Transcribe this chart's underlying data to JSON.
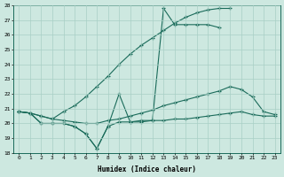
{
  "xlabel": "Humidex (Indice chaleur)",
  "ylabel": "",
  "bg_color": "#cde8e0",
  "grid_color": "#a8cfc5",
  "line_color": "#1a6b5a",
  "xlim": [
    -0.5,
    23.5
  ],
  "ylim": [
    18,
    28
  ],
  "yticks": [
    18,
    19,
    20,
    21,
    22,
    23,
    24,
    25,
    26,
    27,
    28
  ],
  "xticks": [
    0,
    1,
    2,
    3,
    4,
    5,
    6,
    7,
    8,
    9,
    10,
    11,
    12,
    13,
    14,
    15,
    16,
    17,
    18,
    19,
    20,
    21,
    22,
    23
  ],
  "series": [
    {
      "x": [
        0,
        1,
        2,
        3,
        4,
        5,
        6,
        7,
        8,
        9,
        10,
        11,
        12,
        13,
        14,
        15,
        16,
        17,
        18,
        19
      ],
      "y": [
        20.8,
        20.7,
        20.5,
        20.3,
        20.8,
        21.2,
        21.8,
        22.5,
        23.2,
        24.0,
        24.7,
        25.3,
        25.8,
        26.3,
        26.8,
        27.2,
        27.5,
        27.7,
        27.8,
        27.8
      ]
    },
    {
      "x": [
        0,
        1,
        2,
        3,
        4,
        5,
        6,
        7,
        8,
        9,
        10,
        11,
        12,
        13,
        14,
        15,
        16,
        17,
        18
      ],
      "y": [
        20.8,
        20.7,
        20.0,
        20.0,
        20.0,
        19.8,
        19.3,
        18.3,
        19.8,
        22.0,
        20.1,
        20.2,
        20.2,
        27.8,
        26.7,
        26.7,
        26.7,
        26.7,
        26.5
      ]
    },
    {
      "x": [
        0,
        1,
        2,
        3,
        4,
        5,
        6,
        7,
        8,
        9,
        10,
        11,
        12,
        13,
        14,
        15,
        16,
        17,
        18,
        19,
        20,
        21,
        22,
        23
      ],
      "y": [
        20.8,
        20.7,
        20.5,
        20.3,
        20.2,
        20.1,
        20.0,
        20.0,
        20.2,
        20.3,
        20.5,
        20.7,
        20.9,
        21.2,
        21.4,
        21.6,
        21.8,
        22.0,
        22.2,
        22.5,
        22.3,
        21.8,
        20.8,
        20.6
      ]
    },
    {
      "x": [
        0,
        1,
        2,
        3,
        4,
        5,
        6,
        7,
        8,
        9,
        10,
        11,
        12,
        13,
        14,
        15,
        16,
        17,
        18,
        19,
        20,
        21,
        22,
        23
      ],
      "y": [
        20.8,
        20.7,
        20.0,
        20.0,
        20.0,
        19.8,
        19.3,
        18.3,
        19.8,
        20.1,
        20.1,
        20.1,
        20.2,
        20.2,
        20.3,
        20.3,
        20.4,
        20.5,
        20.6,
        20.7,
        20.8,
        20.6,
        20.5,
        20.5
      ]
    }
  ]
}
